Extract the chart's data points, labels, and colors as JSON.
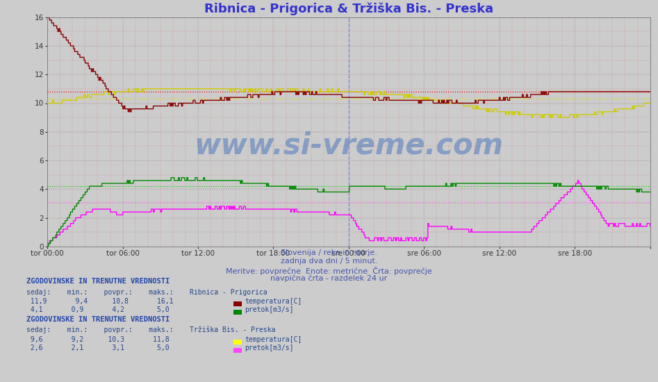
{
  "title": "Ribnica - Prigorica & Tržiška Bis. - Preska",
  "title_color": "#3333cc",
  "bg_color": "#cccccc",
  "ylim": [
    0,
    16
  ],
  "yticks": [
    0,
    2,
    4,
    6,
    8,
    10,
    12,
    14,
    16
  ],
  "x_labels": [
    "tor 00:00",
    "tor 06:00",
    "tor 12:00",
    "tor 18:00",
    "sre 00:00",
    "sre 06:00",
    "sre 12:00",
    "sre 18:00",
    ""
  ],
  "subtitle_lines": [
    "Slovenija / reke in morje.",
    "zadnja dva dni / 5 minut.",
    "Meritve: povprečne  Enote: metrične  Črta: povprečje",
    "navpična črta - razdelek 24 ur"
  ],
  "subtitle_color": "#4455aa",
  "watermark": "www.si-vreme.com",
  "watermark_color": "#3366bb",
  "n_points": 576,
  "ribnica_temp_color": "#880000",
  "ribnica_flow_color": "#008800",
  "trziska_temp_color": "#cccc00",
  "trziska_flow_color": "#ff00ff",
  "avg_ribnica_temp": 10.8,
  "avg_ribnica_flow": 4.2,
  "avg_trziska_temp": 10.3,
  "avg_trziska_flow": 3.1,
  "avg_rib_temp_color": "#ff0000",
  "avg_rib_flow_color": "#00cc00",
  "avg_trz_temp_color": "#dddd00",
  "avg_trz_flow_color": "#ff66ff",
  "vline_midnight_color": "#8888ee",
  "vline_end_color": "#aa44aa",
  "grid_major_color": "#bbbbbb",
  "red_dot_color": "#cc3333",
  "footer_color": "#224488",
  "header_color": "#2244aa",
  "stat1_name": "Ribnica - Prigorica",
  "stat1_sedaj_temp": "11,9",
  "stat1_min_temp": "9,4",
  "stat1_povpr_temp": "10,8",
  "stat1_maks_temp": "16,1",
  "stat1_sedaj_flow": "4,1",
  "stat1_min_flow": "0,9",
  "stat1_povpr_flow": "4,2",
  "stat1_maks_flow": "5,0",
  "stat2_name": "Tržiška Bis. - Preska",
  "stat2_sedaj_temp": "9,6",
  "stat2_min_temp": "9,2",
  "stat2_povpr_temp": "10,3",
  "stat2_maks_temp": "11,8",
  "stat2_sedaj_flow": "2,6",
  "stat2_min_flow": "2,1",
  "stat2_povpr_flow": "3,1",
  "stat2_maks_flow": "5,0",
  "legend_header": "ZGODOVINSKE IN TRENUTNE VREDNOSTI",
  "legend_cols": "sedaj:    min.:    povpr.:    maks.:"
}
